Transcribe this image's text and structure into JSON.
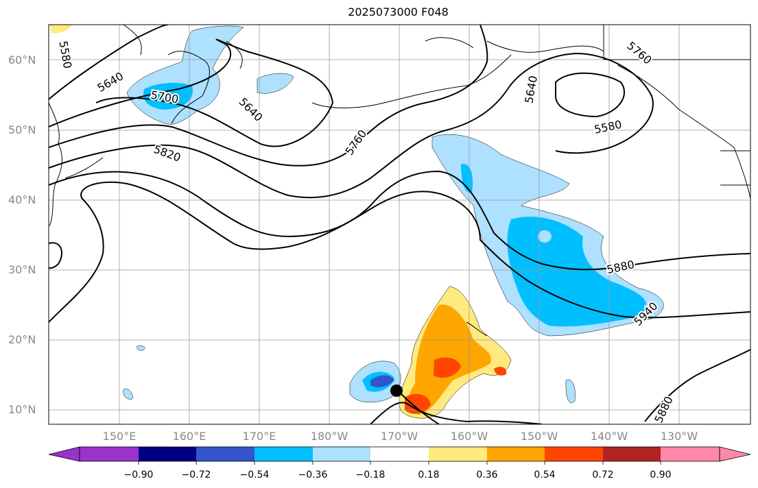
{
  "title": "2025073000 F048",
  "lat_labels": [
    "60°N",
    "50°N",
    "40°N",
    "30°N",
    "20°N",
    "10°N"
  ],
  "lon_labels": [
    "150°E",
    "160°E",
    "170°E",
    "180°W",
    "170°W",
    "160°W",
    "150°W",
    "140°W",
    "130°W"
  ],
  "contour_labels": [
    "5580",
    "5640",
    "5700",
    "5640",
    "5820",
    "5760",
    "5640",
    "5760",
    "5580",
    "5880",
    "5940",
    "5880"
  ],
  "colorbar": {
    "ticks": [
      "−0.90",
      "−0.72",
      "−0.54",
      "−0.36",
      "−0.18",
      "0.18",
      "0.36",
      "0.54",
      "0.72",
      "0.90"
    ],
    "colors": [
      "#9933cc",
      "#000080",
      "#3355cc",
      "#00bfff",
      "#aee0ff",
      "#ffffff",
      "#ffea80",
      "#ffa500",
      "#ff4500",
      "#b22222",
      "#ff88aa"
    ]
  },
  "fill_colors": {
    "light_blue": "#aee0ff",
    "blue": "#00bfff",
    "dark_blue": "#3355cc",
    "yellow": "#ffea80",
    "orange": "#ffa500",
    "red_orange": "#ff4500"
  }
}
